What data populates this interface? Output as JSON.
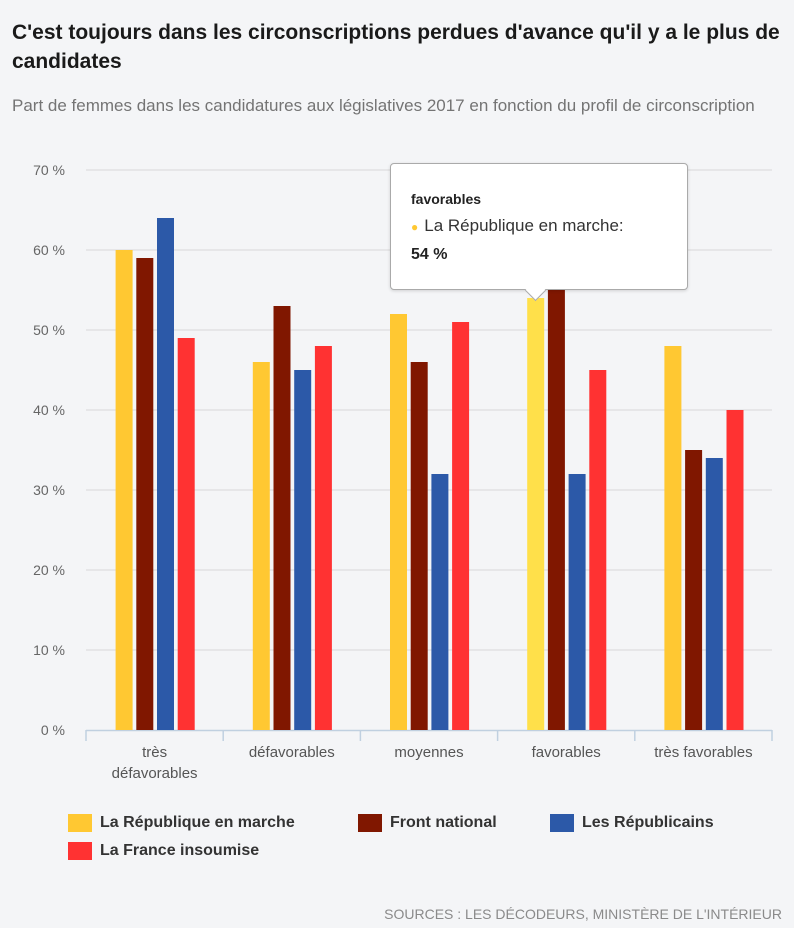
{
  "title": "C'est toujours dans les circonscriptions perdues d'avance qu'il y a le plus de candidates",
  "subtitle": "Part de femmes dans les candidatures aux législatives 2017 en fonction du profil de circonscription",
  "source": "SOURCES : LES DÉCODEURS, MINISTÈRE DE L'INTÉRIEUR",
  "tooltip": {
    "category": "favorables",
    "series": "La République en marche:",
    "value": "54 %"
  },
  "chart_data": {
    "type": "bar",
    "title": "C'est toujours dans les circonscriptions perdues d'avance qu'il y a le plus de candidates",
    "xlabel": "",
    "ylabel": "",
    "ylim": [
      0,
      70
    ],
    "yticks": [
      "0 %",
      "10 %",
      "20 %",
      "30 %",
      "40 %",
      "50 %",
      "60 %",
      "70 %"
    ],
    "categories": [
      "très défavorables",
      "défavorables",
      "moyennes",
      "favorables",
      "très favorables"
    ],
    "legend_position": "bottom-left",
    "series": [
      {
        "name": "La République en marche",
        "color": "#ffc832",
        "values": [
          60,
          46,
          52,
          54,
          48
        ]
      },
      {
        "name": "Front national",
        "color": "#801700",
        "values": [
          59,
          53,
          46,
          55,
          35
        ]
      },
      {
        "name": "Les Républicains",
        "color": "#2c59a8",
        "values": [
          64,
          45,
          32,
          32,
          34
        ]
      },
      {
        "name": "La France insoumise",
        "color": "#ff3232",
        "values": [
          49,
          48,
          51,
          45,
          40
        ]
      }
    ],
    "highlight_color": "#ffe04a"
  }
}
